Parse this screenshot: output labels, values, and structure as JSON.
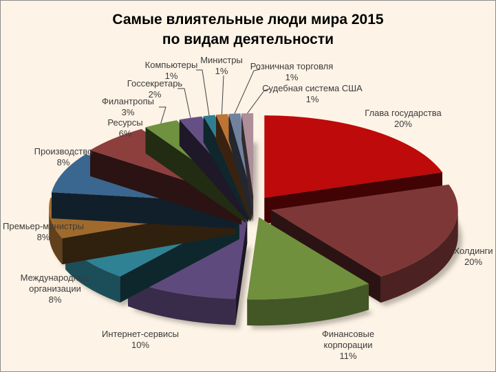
{
  "title": {
    "line1": "Самые влиятельные люди мира 2015",
    "line2": "по видам деятельности"
  },
  "chart_data": {
    "type": "pie",
    "style": "3d-exploded",
    "title": "Самые влиятельные люди мира 2015 по видам деятельности",
    "unit": "%",
    "legend_position": "none",
    "data_labels": "category-name-and-percent",
    "background": "#FDF3E6",
    "border_color": "#8A8A8A",
    "label_color": "#3B3B3B",
    "slices": [
      {
        "label": "Глава государства",
        "value": 20,
        "color": "#BE0A0A"
      },
      {
        "label": "Холдинги",
        "value": 20,
        "color": "#7E3737"
      },
      {
        "label": "Финансовые корпорации",
        "value": 11,
        "color": "#70903E"
      },
      {
        "label": "Интернет-сервисы",
        "value": 10,
        "color": "#5F4A7D"
      },
      {
        "label": "Международные организации",
        "value": 8,
        "color": "#2E8294"
      },
      {
        "label": "Премьер-министры",
        "value": 8,
        "color": "#A16A2D"
      },
      {
        "label": "Производство",
        "value": 8,
        "color": "#3A6790"
      },
      {
        "label": "Ресурсы",
        "value": 6,
        "color": "#8D3F3D"
      },
      {
        "label": "Филантропы",
        "value": 3,
        "color": "#6F9140"
      },
      {
        "label": "Госсекретарь",
        "value": 2,
        "color": "#655085"
      },
      {
        "label": "Компьютеры",
        "value": 1,
        "color": "#2F7F93"
      },
      {
        "label": "Министры",
        "value": 1,
        "color": "#BE7434"
      },
      {
        "label": "Розничная торговля",
        "value": 1,
        "color": "#71829F"
      },
      {
        "label": "Судебная система США",
        "value": 1,
        "color": "#AD8E99"
      }
    ]
  }
}
